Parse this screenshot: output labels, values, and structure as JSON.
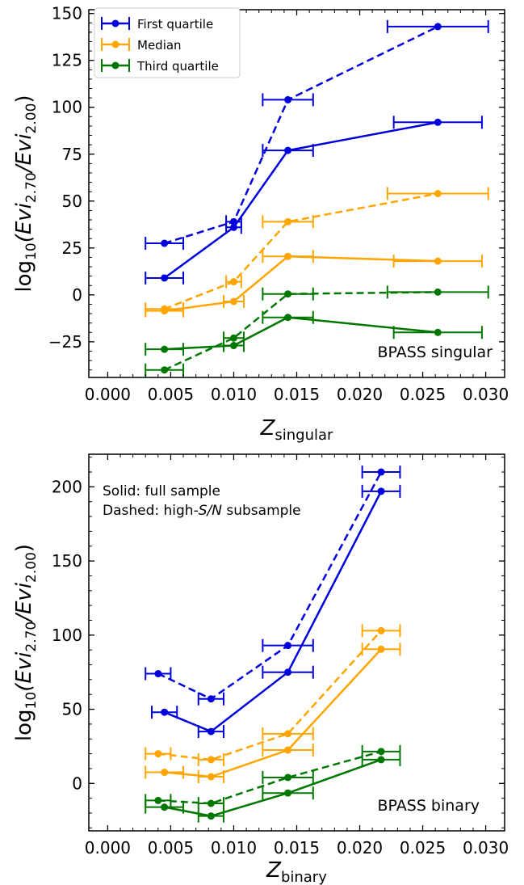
{
  "chart_data": [
    {
      "type": "line",
      "xlabel_main": "Z",
      "xlabel_sub": "singular",
      "ylabel_prefix": "log",
      "ylabel_sub10": "10",
      "ylabel_rest": "(Evi",
      "ylabel_sub1": "2.70",
      "ylabel_mid": "/Evi",
      "ylabel_sub2": "2.00",
      "ylabel_end": ")",
      "xlim": [
        -0.0015,
        0.0315
      ],
      "ylim": [
        -44,
        152
      ],
      "xticks": [
        0.0,
        0.005,
        0.01,
        0.015,
        0.02,
        0.025,
        0.03
      ],
      "xtick_labels": [
        "0.000",
        "0.005",
        "0.010",
        "0.015",
        "0.020",
        "0.025",
        "0.030"
      ],
      "yticks": [
        -25,
        0,
        25,
        50,
        75,
        100,
        125,
        150
      ],
      "ytick_labels": [
        "−25",
        "0",
        "25",
        "50",
        "75",
        "100",
        "125",
        "150"
      ],
      "annotation": "BPASS singular",
      "legend": {
        "placement": "top-left",
        "entries": [
          "First quartile",
          "Median",
          "Third quartile"
        ]
      },
      "series": [
        {
          "name": "First quartile",
          "style": "solid",
          "color": "#0000dd",
          "x": [
            0.0045,
            0.01,
            0.0143,
            0.0262
          ],
          "y": [
            9,
            36,
            77,
            92
          ],
          "xerr": [
            [
              0.0015,
              0.0015
            ],
            [
              0.0006,
              0.0006
            ],
            [
              0.002,
              0.002
            ],
            [
              0.0035,
              0.0035
            ]
          ]
        },
        {
          "name": "First quartile",
          "style": "dashed",
          "color": "#0000dd",
          "x": [
            0.0045,
            0.01,
            0.0143,
            0.0262
          ],
          "y": [
            27.5,
            39,
            104,
            143
          ],
          "xerr": [
            [
              0.0015,
              0.0015
            ],
            [
              0.0006,
              0.0006
            ],
            [
              0.002,
              0.002
            ],
            [
              0.004,
              0.004
            ]
          ]
        },
        {
          "name": "Median",
          "style": "solid",
          "color": "#ffa500",
          "x": [
            0.0045,
            0.01,
            0.0143,
            0.0262
          ],
          "y": [
            -8.5,
            -3.5,
            20.5,
            18
          ],
          "xerr": [
            [
              0.0015,
              0.0015
            ],
            [
              0.0008,
              0.0008
            ],
            [
              0.002,
              0.002
            ],
            [
              0.0035,
              0.0035
            ]
          ]
        },
        {
          "name": "Median",
          "style": "dashed",
          "color": "#ffa500",
          "x": [
            0.0045,
            0.01,
            0.0143,
            0.0262
          ],
          "y": [
            -7.5,
            7,
            39,
            54
          ],
          "xerr": [
            [
              0.0015,
              0.0015
            ],
            [
              0.0006,
              0.0006
            ],
            [
              0.002,
              0.002
            ],
            [
              0.004,
              0.004
            ]
          ]
        },
        {
          "name": "Third quartile",
          "style": "solid",
          "color": "#007700",
          "x": [
            0.0045,
            0.01,
            0.0143,
            0.0262
          ],
          "y": [
            -29,
            -27,
            -12,
            -20
          ],
          "xerr": [
            [
              0.0015,
              0.0015
            ],
            [
              0.0008,
              0.0008
            ],
            [
              0.002,
              0.002
            ],
            [
              0.0035,
              0.0035
            ]
          ]
        },
        {
          "name": "Third quartile",
          "style": "dashed",
          "color": "#007700",
          "x": [
            0.0045,
            0.01,
            0.0143,
            0.0262
          ],
          "y": [
            -40,
            -23,
            0.5,
            1.5
          ],
          "xerr": [
            [
              0.0015,
              0.0015
            ],
            [
              0.0008,
              0.0008
            ],
            [
              0.002,
              0.002
            ],
            [
              0.004,
              0.004
            ]
          ]
        }
      ]
    },
    {
      "type": "line",
      "xlabel_main": "Z",
      "xlabel_sub": "binary",
      "ylabel_prefix": "log",
      "ylabel_sub10": "10",
      "ylabel_rest": "(Evi",
      "ylabel_sub1": "2.70",
      "ylabel_mid": "/Evi",
      "ylabel_sub2": "2.00",
      "ylabel_end": ")",
      "xlim": [
        -0.0015,
        0.0315
      ],
      "ylim": [
        -32,
        222
      ],
      "xticks": [
        0.0,
        0.005,
        0.01,
        0.015,
        0.02,
        0.025,
        0.03
      ],
      "xtick_labels": [
        "0.000",
        "0.005",
        "0.010",
        "0.015",
        "0.020",
        "0.025",
        "0.030"
      ],
      "yticks": [
        0,
        50,
        100,
        150,
        200
      ],
      "ytick_labels": [
        "0",
        "50",
        "100",
        "150",
        "200"
      ],
      "annotation": "BPASS binary",
      "notes": {
        "line1": "Solid: full sample",
        "line2_pre": "Dashed: high-",
        "line2_italic": "S/N",
        "line2_post": " subsample"
      },
      "series": [
        {
          "name": "First quartile",
          "style": "solid",
          "color": "#0000dd",
          "x": [
            0.0045,
            0.0082,
            0.0143,
            0.0217
          ],
          "y": [
            48,
            35,
            75,
            197
          ],
          "xerr": [
            [
              0.001,
              0.001
            ],
            [
              0.001,
              0.001
            ],
            [
              0.002,
              0.002
            ],
            [
              0.0015,
              0.0015
            ]
          ]
        },
        {
          "name": "First quartile",
          "style": "dashed",
          "color": "#0000dd",
          "x": [
            0.004,
            0.0082,
            0.0143,
            0.0217
          ],
          "y": [
            74,
            57,
            93,
            210
          ],
          "xerr": [
            [
              0.001,
              0.001
            ],
            [
              0.001,
              0.001
            ],
            [
              0.002,
              0.002
            ],
            [
              0.0015,
              0.0015
            ]
          ]
        },
        {
          "name": "Median",
          "style": "solid",
          "color": "#ffa500",
          "x": [
            0.0045,
            0.0082,
            0.0143,
            0.0217
          ],
          "y": [
            7.5,
            4.5,
            22.5,
            90.5
          ],
          "xerr": [
            [
              0.0015,
              0.0015
            ],
            [
              0.001,
              0.001
            ],
            [
              0.002,
              0.002
            ],
            [
              0.0015,
              0.0015
            ]
          ]
        },
        {
          "name": "Median",
          "style": "dashed",
          "color": "#ffa500",
          "x": [
            0.004,
            0.0082,
            0.0143,
            0.0217
          ],
          "y": [
            20,
            16,
            33.5,
            103
          ],
          "xerr": [
            [
              0.001,
              0.001
            ],
            [
              0.001,
              0.001
            ],
            [
              0.002,
              0.002
            ],
            [
              0.0015,
              0.0015
            ]
          ]
        },
        {
          "name": "Third quartile",
          "style": "solid",
          "color": "#007700",
          "x": [
            0.0045,
            0.0082,
            0.0143,
            0.0217
          ],
          "y": [
            -16,
            -22,
            -6.5,
            16
          ],
          "xerr": [
            [
              0.0015,
              0.0015
            ],
            [
              0.001,
              0.001
            ],
            [
              0.002,
              0.002
            ],
            [
              0.0015,
              0.0015
            ]
          ]
        },
        {
          "name": "Third quartile",
          "style": "dashed",
          "color": "#007700",
          "x": [
            0.004,
            0.0082,
            0.0143,
            0.0217
          ],
          "y": [
            -11.5,
            -13.5,
            4,
            21.5
          ],
          "xerr": [
            [
              0.001,
              0.001
            ],
            [
              0.001,
              0.001
            ],
            [
              0.002,
              0.002
            ],
            [
              0.0015,
              0.0015
            ]
          ]
        }
      ]
    }
  ]
}
